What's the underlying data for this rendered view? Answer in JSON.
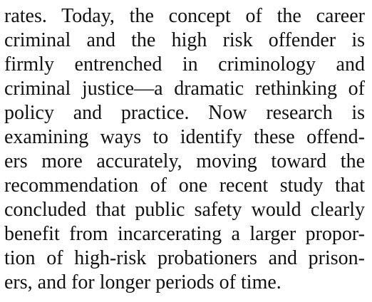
{
  "paragraph": {
    "lines": [
      "rates. Today, the concept of the career",
      "criminal and the high risk offender is",
      "firmly entrenched in criminology and",
      "criminal justice—a dramatic rethinking of",
      "policy and practice. Now research is",
      "examining ways to identify these offend-",
      "ers more accurately, moving toward the",
      "recommendation of one recent study that",
      "concluded that public safety would clearly",
      "benefit from incarcerating a larger propor-",
      "tion of high-risk probationers and prison-",
      "ers, and for longer periods of time."
    ]
  }
}
